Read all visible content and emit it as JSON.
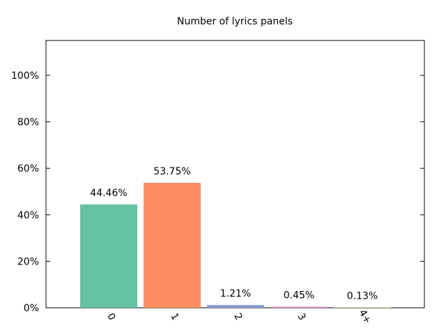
{
  "chart_data": {
    "type": "bar",
    "title": "Number of lyrics panels",
    "xlabel": "",
    "ylabel": "",
    "categories": [
      "0",
      "1",
      "2",
      "3",
      "4+"
    ],
    "values": [
      44.46,
      53.75,
      1.21,
      0.45,
      0.13
    ],
    "data_labels": [
      "44.46%",
      "53.75%",
      "1.21%",
      "0.45%",
      "0.13%"
    ],
    "colors": [
      "#66c2a5",
      "#fc8d62",
      "#8da0cb",
      "#e78ac3",
      "#a6d854"
    ],
    "ylim": [
      0,
      115
    ],
    "yticks": [
      0,
      20,
      40,
      60,
      80,
      100
    ],
    "ytick_labels": [
      "0%",
      "20%",
      "40%",
      "60%",
      "80%",
      "100%"
    ],
    "grid": false,
    "legend": "none"
  }
}
